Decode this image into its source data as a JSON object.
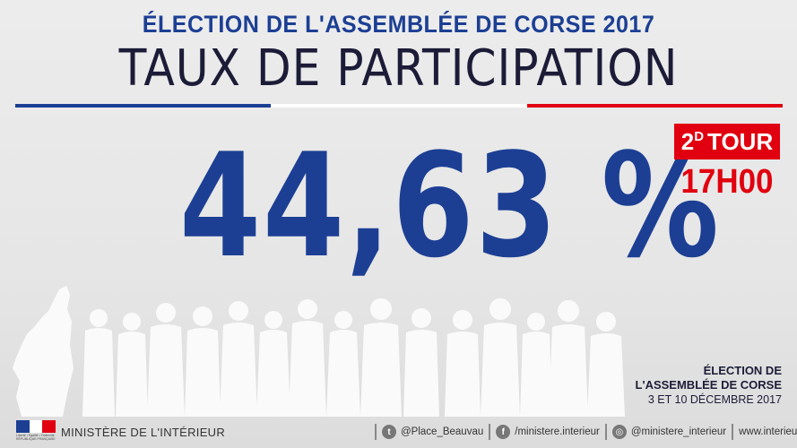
{
  "header": {
    "event_title": "ÉLECTION DE L'ASSEMBLÉE DE CORSE 2017",
    "subject": "TAUX DE PARTICIPATION"
  },
  "result": {
    "rate": "44,63 %",
    "rate_value": 44.63
  },
  "round": {
    "number": "2",
    "superscript": "D",
    "label": "TOUR",
    "time": "17H00"
  },
  "event_info": {
    "line1": "ÉLECTION DE",
    "line2": "L'ASSEMBLÉE DE CORSE",
    "dates": "3 ET 10 DÉCEMBRE 2017"
  },
  "footer": {
    "logo_motto_1": "Liberté • Égalité • Fraternité",
    "logo_motto_2": "RÉPUBLIQUE FRANÇAISE",
    "ministry": "MINISTÈRE DE L'INTÉRIEUR",
    "socials": [
      {
        "icon": "twitter-icon",
        "label": "@Place_Beauvau"
      },
      {
        "icon": "facebook-icon",
        "label": "/ministere.interieur"
      },
      {
        "icon": "instagram-icon",
        "label": "@ministere_interieur"
      },
      {
        "icon": "",
        "label": "www.interieur.gouv.fr"
      }
    ]
  },
  "colors": {
    "blue": "#1c3f94",
    "red": "#e1000f",
    "dark": "#1c1c38"
  }
}
